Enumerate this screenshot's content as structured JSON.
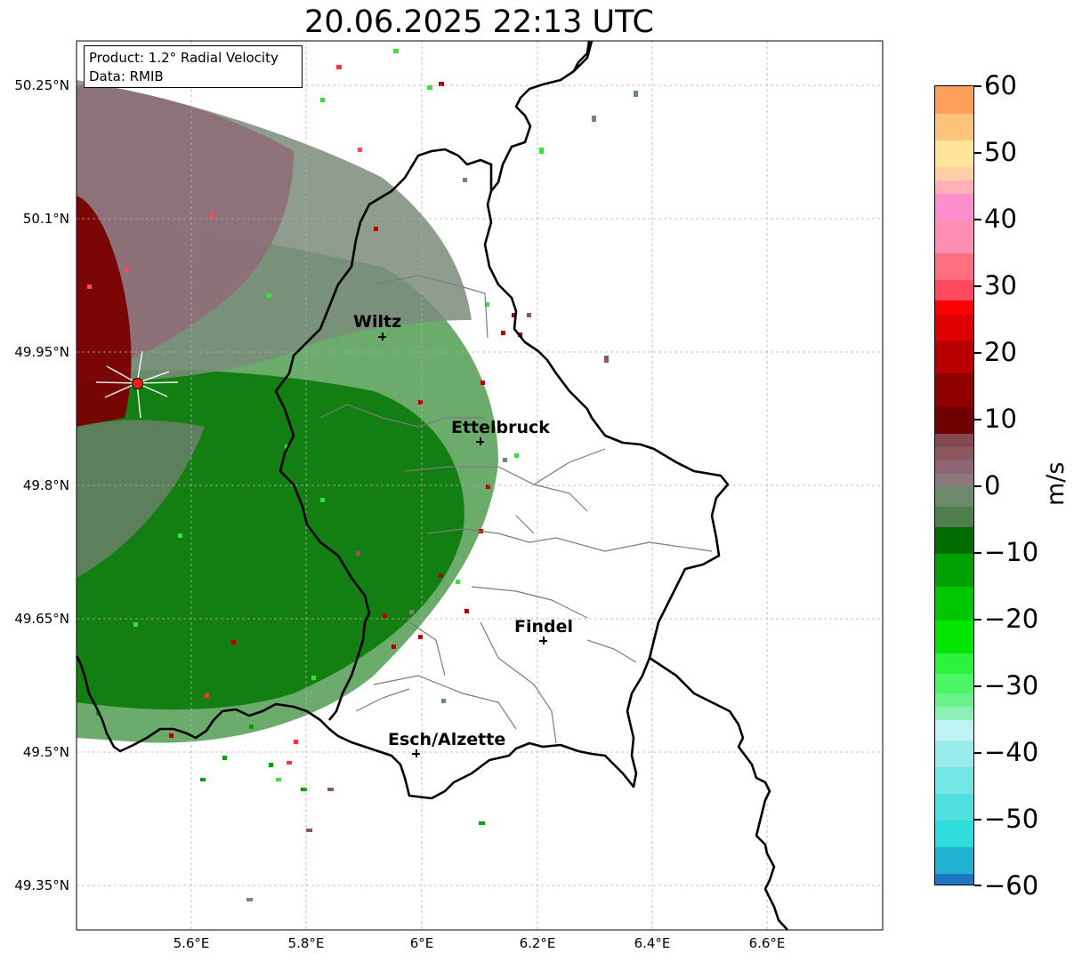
{
  "title": "20.06.2025 22:13 UTC",
  "info_box": {
    "product_line": "Product: 1.2° Radial Velocity",
    "data_line": "Data: RMIB"
  },
  "map": {
    "lon_range": [
      5.4,
      6.8
    ],
    "lat_range": [
      49.3,
      50.3
    ],
    "gridlines": true,
    "lat_ticks": [
      "50.25°N",
      "50.1°N",
      "49.95°N",
      "49.8°N",
      "49.65°N",
      "49.5°N",
      "49.35°N"
    ],
    "lon_ticks": [
      "5.6°E",
      "5.8°E",
      "6°E",
      "6.2°E",
      "6.4°E",
      "6.6°E"
    ],
    "radar_site": {
      "lon": 5.505,
      "lat": 49.916,
      "color": "#ff1a1a"
    },
    "cities": [
      {
        "name": "Wiltz",
        "lon": 5.93,
        "lat": 49.97
      },
      {
        "name": "Ettelbruck",
        "lon": 6.1,
        "lat": 49.85
      },
      {
        "name": "Findel",
        "lon": 6.21,
        "lat": 49.63
      },
      {
        "name": "Esch/Alzette",
        "lon": 5.99,
        "lat": 49.5
      }
    ]
  },
  "colorbar": {
    "label": "m/s",
    "range": [
      -60,
      60
    ],
    "ticks": [
      "60",
      "50",
      "40",
      "30",
      "20",
      "10",
      "0",
      "−10",
      "−20",
      "−30",
      "−40",
      "−50",
      "−60"
    ],
    "stops": [
      {
        "from": -60,
        "to": -58,
        "color": "#1f77c4"
      },
      {
        "from": -58,
        "to": -54,
        "color": "#22b0d0"
      },
      {
        "from": -54,
        "to": -50,
        "color": "#2edcdc"
      },
      {
        "from": -50,
        "to": -46,
        "color": "#4fe0e0"
      },
      {
        "from": -46,
        "to": -42,
        "color": "#74e6e6"
      },
      {
        "from": -42,
        "to": -38,
        "color": "#9aecec"
      },
      {
        "from": -38,
        "to": -35,
        "color": "#bff2f2"
      },
      {
        "from": -35,
        "to": -33,
        "color": "#8cf0b4"
      },
      {
        "from": -33,
        "to": -31,
        "color": "#6af28a"
      },
      {
        "from": -31,
        "to": -28,
        "color": "#4df564"
      },
      {
        "from": -28,
        "to": -25,
        "color": "#2cf23c"
      },
      {
        "from": -25,
        "to": -20,
        "color": "#00e600"
      },
      {
        "from": -20,
        "to": -15,
        "color": "#00c800"
      },
      {
        "from": -15,
        "to": -10,
        "color": "#00a000"
      },
      {
        "from": -10,
        "to": -6,
        "color": "#006c00"
      },
      {
        "from": -6,
        "to": -3,
        "color": "#4e7e4e"
      },
      {
        "from": -3,
        "to": 0,
        "color": "#6a8a6a"
      },
      {
        "from": 0,
        "to": 2,
        "color": "#8a7a7a"
      },
      {
        "from": 2,
        "to": 4,
        "color": "#8c6674"
      },
      {
        "from": 4,
        "to": 6,
        "color": "#8c5860"
      },
      {
        "from": 6,
        "to": 8,
        "color": "#844850"
      },
      {
        "from": 8,
        "to": 12,
        "color": "#700000"
      },
      {
        "from": 12,
        "to": 17,
        "color": "#900000"
      },
      {
        "from": 17,
        "to": 22,
        "color": "#b80000"
      },
      {
        "from": 22,
        "to": 26,
        "color": "#e00000"
      },
      {
        "from": 26,
        "to": 28,
        "color": "#ff0000"
      },
      {
        "from": 28,
        "to": 31,
        "color": "#ff4a5e"
      },
      {
        "from": 31,
        "to": 35,
        "color": "#ff6f80"
      },
      {
        "from": 35,
        "to": 40,
        "color": "#ff90b4"
      },
      {
        "from": 40,
        "to": 44,
        "color": "#ff8ecf"
      },
      {
        "from": 44,
        "to": 46,
        "color": "#ffb0b8"
      },
      {
        "from": 46,
        "to": 48,
        "color": "#ffd0a8"
      },
      {
        "from": 48,
        "to": 52,
        "color": "#ffe49c"
      },
      {
        "from": 52,
        "to": 56,
        "color": "#ffc47c"
      },
      {
        "from": 56,
        "to": 60,
        "color": "#ffa05c"
      }
    ]
  }
}
